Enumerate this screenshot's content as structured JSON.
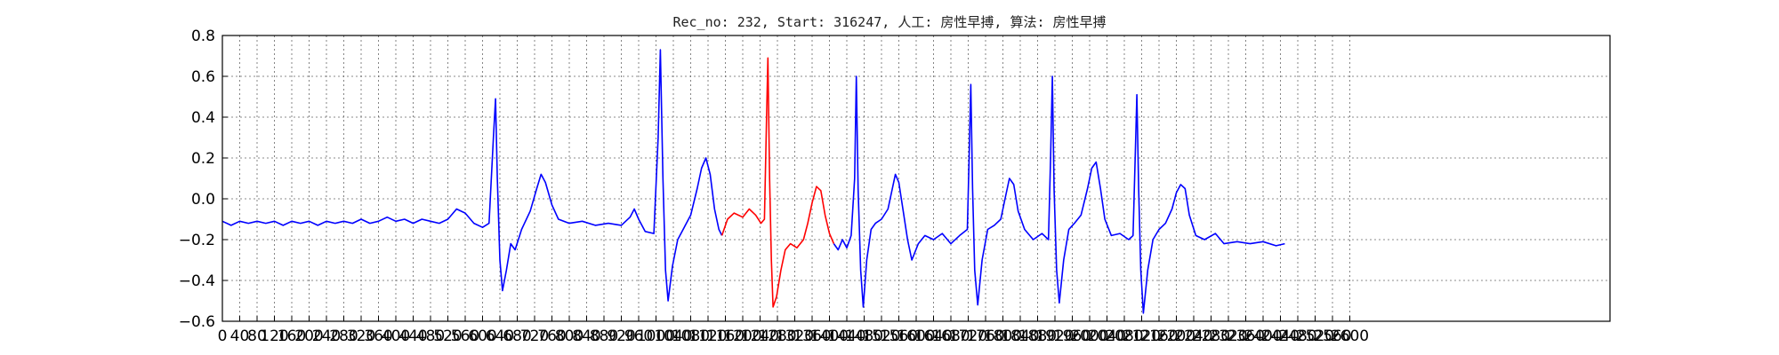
{
  "chart_data": {
    "type": "line",
    "title": "Rec_no: 232, Start: 316247, 人工: 房性早搏, 算法: 房性早搏",
    "xlim": [
      0,
      3200
    ],
    "ylim": [
      -0.6,
      0.8
    ],
    "grid": true,
    "yticks": [
      -0.6,
      -0.4,
      -0.2,
      0.0,
      0.2,
      0.4,
      0.6,
      0.8
    ],
    "ytick_labels": [
      "−0.6",
      "−0.4",
      "−0.2",
      "0.0",
      "0.2",
      "0.4",
      "0.6",
      "0.8"
    ],
    "xtick_step": 40,
    "xtick_max": 2600,
    "series": [
      {
        "color": "#0000ff",
        "points": [
          [
            0,
            -0.11
          ],
          [
            20,
            -0.13
          ],
          [
            40,
            -0.11
          ],
          [
            60,
            -0.12
          ],
          [
            80,
            -0.11
          ],
          [
            100,
            -0.12
          ],
          [
            120,
            -0.11
          ],
          [
            140,
            -0.13
          ],
          [
            160,
            -0.11
          ],
          [
            180,
            -0.12
          ],
          [
            200,
            -0.11
          ],
          [
            220,
            -0.13
          ],
          [
            240,
            -0.11
          ],
          [
            260,
            -0.12
          ],
          [
            280,
            -0.11
          ],
          [
            300,
            -0.12
          ],
          [
            320,
            -0.1
          ],
          [
            340,
            -0.12
          ],
          [
            360,
            -0.11
          ],
          [
            380,
            -0.09
          ],
          [
            400,
            -0.11
          ],
          [
            420,
            -0.1
          ],
          [
            440,
            -0.12
          ],
          [
            460,
            -0.1
          ],
          [
            480,
            -0.11
          ],
          [
            500,
            -0.12
          ],
          [
            520,
            -0.1
          ],
          [
            540,
            -0.05
          ],
          [
            560,
            -0.07
          ],
          [
            580,
            -0.12
          ],
          [
            600,
            -0.14
          ],
          [
            615,
            -0.12
          ],
          [
            625,
            0.3
          ],
          [
            630,
            0.49
          ],
          [
            634,
            0.1
          ],
          [
            640,
            -0.3
          ],
          [
            646,
            -0.45
          ],
          [
            655,
            -0.35
          ],
          [
            665,
            -0.22
          ],
          [
            675,
            -0.25
          ],
          [
            690,
            -0.15
          ],
          [
            710,
            -0.06
          ],
          [
            725,
            0.05
          ],
          [
            735,
            0.12
          ],
          [
            745,
            0.08
          ],
          [
            760,
            -0.03
          ],
          [
            775,
            -0.1
          ],
          [
            800,
            -0.12
          ],
          [
            830,
            -0.11
          ],
          [
            860,
            -0.13
          ],
          [
            890,
            -0.12
          ],
          [
            920,
            -0.13
          ],
          [
            940,
            -0.09
          ],
          [
            950,
            -0.05
          ],
          [
            960,
            -0.1
          ],
          [
            975,
            -0.16
          ],
          [
            995,
            -0.17
          ],
          [
            1005,
            0.3
          ],
          [
            1010,
            0.73
          ],
          [
            1016,
            0.1
          ],
          [
            1022,
            -0.35
          ],
          [
            1028,
            -0.5
          ],
          [
            1038,
            -0.33
          ],
          [
            1050,
            -0.2
          ],
          [
            1065,
            -0.14
          ],
          [
            1080,
            -0.08
          ],
          [
            1095,
            0.05
          ],
          [
            1105,
            0.15
          ],
          [
            1115,
            0.2
          ],
          [
            1125,
            0.12
          ],
          [
            1135,
            -0.05
          ],
          [
            1145,
            -0.15
          ],
          [
            1152,
            -0.18
          ]
        ]
      },
      {
        "color": "#ff0000",
        "points": [
          [
            1152,
            -0.18
          ],
          [
            1165,
            -0.1
          ],
          [
            1180,
            -0.07
          ],
          [
            1200,
            -0.09
          ],
          [
            1215,
            -0.05
          ],
          [
            1230,
            -0.08
          ],
          [
            1242,
            -0.12
          ],
          [
            1250,
            -0.1
          ],
          [
            1255,
            0.4
          ],
          [
            1258,
            0.69
          ],
          [
            1262,
            0.1
          ],
          [
            1266,
            -0.3
          ],
          [
            1270,
            -0.53
          ],
          [
            1278,
            -0.48
          ],
          [
            1288,
            -0.35
          ],
          [
            1298,
            -0.25
          ],
          [
            1310,
            -0.22
          ],
          [
            1325,
            -0.24
          ],
          [
            1340,
            -0.2
          ],
          [
            1350,
            -0.12
          ],
          [
            1360,
            -0.02
          ],
          [
            1370,
            0.06
          ],
          [
            1380,
            0.04
          ],
          [
            1390,
            -0.08
          ],
          [
            1400,
            -0.17
          ],
          [
            1410,
            -0.22
          ]
        ]
      },
      {
        "color": "#0000ff",
        "points": [
          [
            1410,
            -0.22
          ],
          [
            1420,
            -0.25
          ],
          [
            1430,
            -0.2
          ],
          [
            1440,
            -0.24
          ],
          [
            1450,
            -0.18
          ],
          [
            1458,
            0.1
          ],
          [
            1462,
            0.6
          ],
          [
            1466,
            0.05
          ],
          [
            1472,
            -0.35
          ],
          [
            1478,
            -0.53
          ],
          [
            1486,
            -0.3
          ],
          [
            1496,
            -0.15
          ],
          [
            1506,
            -0.12
          ],
          [
            1520,
            -0.1
          ],
          [
            1535,
            -0.05
          ],
          [
            1545,
            0.05
          ],
          [
            1552,
            0.12
          ],
          [
            1560,
            0.08
          ],
          [
            1570,
            -0.06
          ],
          [
            1580,
            -0.2
          ],
          [
            1590,
            -0.3
          ],
          [
            1605,
            -0.22
          ],
          [
            1620,
            -0.18
          ],
          [
            1640,
            -0.2
          ],
          [
            1660,
            -0.17
          ],
          [
            1680,
            -0.22
          ],
          [
            1700,
            -0.18
          ],
          [
            1718,
            -0.15
          ],
          [
            1722,
            0.2
          ],
          [
            1726,
            0.56
          ],
          [
            1730,
            0.05
          ],
          [
            1735,
            -0.35
          ],
          [
            1742,
            -0.52
          ],
          [
            1752,
            -0.3
          ],
          [
            1765,
            -0.15
          ],
          [
            1780,
            -0.13
          ],
          [
            1795,
            -0.1
          ],
          [
            1805,
            0.0
          ],
          [
            1815,
            0.1
          ],
          [
            1825,
            0.07
          ],
          [
            1835,
            -0.06
          ],
          [
            1850,
            -0.15
          ],
          [
            1870,
            -0.2
          ],
          [
            1890,
            -0.17
          ],
          [
            1905,
            -0.2
          ],
          [
            1910,
            0.2
          ],
          [
            1914,
            0.6
          ],
          [
            1918,
            0.05
          ],
          [
            1924,
            -0.35
          ],
          [
            1930,
            -0.51
          ],
          [
            1940,
            -0.3
          ],
          [
            1952,
            -0.15
          ],
          [
            1965,
            -0.12
          ],
          [
            1980,
            -0.08
          ],
          [
            1995,
            0.05
          ],
          [
            2005,
            0.15
          ],
          [
            2015,
            0.18
          ],
          [
            2025,
            0.05
          ],
          [
            2035,
            -0.1
          ],
          [
            2050,
            -0.18
          ],
          [
            2070,
            -0.17
          ],
          [
            2090,
            -0.2
          ],
          [
            2100,
            -0.18
          ],
          [
            2105,
            0.2
          ],
          [
            2109,
            0.51
          ],
          [
            2113,
            0.05
          ],
          [
            2118,
            -0.35
          ],
          [
            2124,
            -0.56
          ],
          [
            2134,
            -0.35
          ],
          [
            2146,
            -0.2
          ],
          [
            2160,
            -0.15
          ],
          [
            2175,
            -0.12
          ],
          [
            2190,
            -0.05
          ],
          [
            2200,
            0.03
          ],
          [
            2210,
            0.07
          ],
          [
            2220,
            0.05
          ],
          [
            2230,
            -0.08
          ],
          [
            2245,
            -0.18
          ],
          [
            2265,
            -0.2
          ],
          [
            2290,
            -0.17
          ],
          [
            2310,
            -0.22
          ],
          [
            2340,
            -0.21
          ],
          [
            2370,
            -0.22
          ],
          [
            2400,
            -0.21
          ],
          [
            2430,
            -0.23
          ],
          [
            2450,
            -0.22
          ]
        ]
      }
    ]
  }
}
